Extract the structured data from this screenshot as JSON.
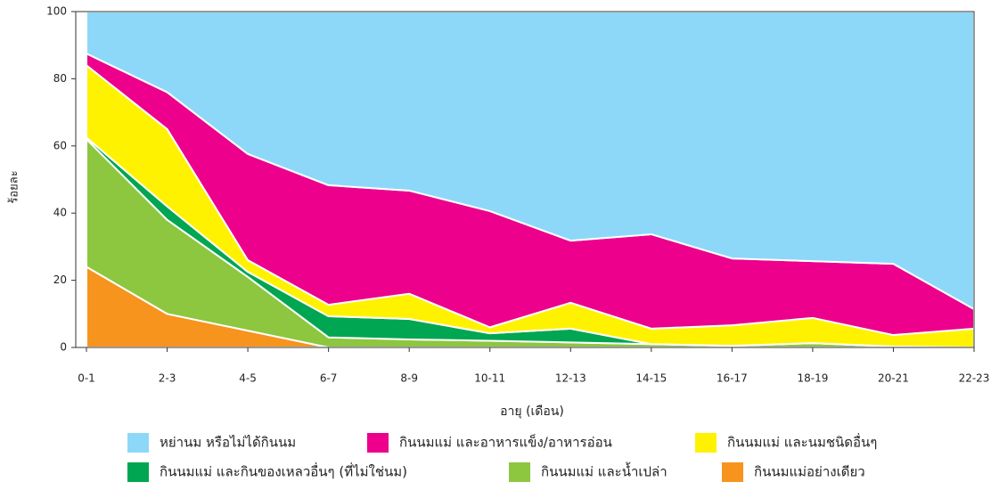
{
  "chart_data": {
    "type": "stacked_area",
    "xlabel": "อายุ (เดือน)",
    "ylabel": "ร้อยละ",
    "categories": [
      "0-1",
      "2-3",
      "4-5",
      "6-7",
      "8-9",
      "10-11",
      "12-13",
      "14-15",
      "16-17",
      "18-19",
      "20-21",
      "22-23"
    ],
    "series": [
      {
        "name": "หย่านม หรือไม่ได้กินนม",
        "color": "#8dd8f8",
        "values": [
          12.5,
          24,
          42.4,
          51.7,
          53.3,
          59.4,
          68.2,
          66.3,
          73.5,
          74.3,
          75.1,
          88.6
        ]
      },
      {
        "name": "กินนมแม่ และอาหารแข็ง/อาหารอ่อน",
        "color": "#ec008c",
        "values": [
          3.5,
          11,
          31.6,
          35.6,
          30.7,
          34.6,
          18.5,
          28.1,
          19.9,
          16.9,
          21.2,
          5.8
        ]
      },
      {
        "name": "กินนมแม่ และนมชนิดอื่นๆ",
        "color": "#fff200",
        "values": [
          21.5,
          23,
          3.5,
          3.4,
          7.5,
          1.8,
          7.7,
          4.6,
          6.1,
          7.5,
          3.4,
          5.6
        ]
      },
      {
        "name": "กินนมแม่ และกินของเหลวอื่นๆ (ที่ไม่ใช่นม)",
        "color": "#00a651",
        "values": [
          0.5,
          4,
          1.5,
          6.3,
          6.1,
          2.2,
          4.1,
          0,
          0,
          0,
          0,
          0
        ]
      },
      {
        "name": "กินนมแม่ และน้ำเปล่า",
        "color": "#8dc63f",
        "values": [
          38,
          28,
          16,
          3,
          2.4,
          2,
          1.5,
          1,
          0.5,
          1.3,
          0.3,
          0
        ]
      },
      {
        "name": "กินนมแม่อย่างเดียว",
        "color": "#f7941d",
        "values": [
          24,
          10,
          5,
          0,
          0,
          0,
          0,
          0,
          0,
          0,
          0,
          0
        ]
      }
    ],
    "ylim": [
      0,
      100
    ],
    "yticks": [
      0,
      20,
      40,
      60,
      80,
      100
    ]
  }
}
